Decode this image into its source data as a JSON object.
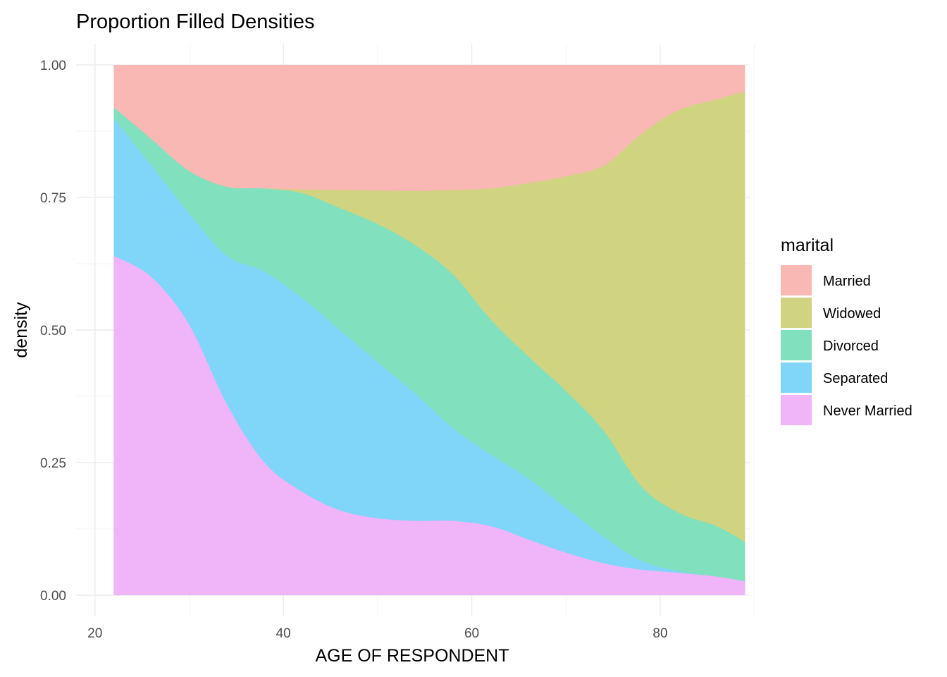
{
  "chart_data": {
    "type": "area",
    "title": "Proportion Filled Densities",
    "xlabel": "AGE OF RESPONDENT",
    "ylabel": "density",
    "xlim": [
      18,
      89.5
    ],
    "ylim": [
      -0.04,
      1.04
    ],
    "x_ticks": [
      {
        "value": 20,
        "label": "20"
      },
      {
        "value": 40,
        "label": "40"
      },
      {
        "value": 60,
        "label": "60"
      },
      {
        "value": 80,
        "label": "80"
      }
    ],
    "y_ticks": [
      {
        "value": 0,
        "label": "0.00"
      },
      {
        "value": 0.25,
        "label": "0.25"
      },
      {
        "value": 0.5,
        "label": "0.50"
      },
      {
        "value": 0.75,
        "label": "0.75"
      },
      {
        "value": 1.0,
        "label": "1.00"
      }
    ],
    "x_minor": [
      30,
      50,
      70,
      90
    ],
    "y_minor": [
      0.125,
      0.375,
      0.625,
      0.875
    ],
    "grid": true,
    "stacked": "fill",
    "legend": {
      "title": "marital",
      "position": "right"
    },
    "x": [
      22,
      26,
      30,
      34,
      38,
      42,
      46,
      50,
      54,
      58,
      62,
      66,
      70,
      74,
      78,
      82,
      86,
      89
    ],
    "series": [
      {
        "name": "Never Married",
        "color": "#F0B4F8",
        "values": [
          0.64,
          0.6,
          0.51,
          0.36,
          0.25,
          0.195,
          0.16,
          0.145,
          0.14,
          0.14,
          0.13,
          0.105,
          0.08,
          0.06,
          0.048,
          0.042,
          0.035,
          0.026
        ]
      },
      {
        "name": "Separated",
        "color": "#80D6F9",
        "values": [
          0.9,
          0.81,
          0.72,
          0.64,
          0.61,
          0.56,
          0.5,
          0.44,
          0.38,
          0.315,
          0.265,
          0.22,
          0.165,
          0.11,
          0.065,
          0.045,
          0.035,
          0.026
        ]
      },
      {
        "name": "Divorced",
        "color": "#81E0BE",
        "values": [
          0.92,
          0.86,
          0.8,
          0.77,
          0.767,
          0.758,
          0.73,
          0.7,
          0.66,
          0.605,
          0.52,
          0.45,
          0.385,
          0.31,
          0.205,
          0.155,
          0.13,
          0.1
        ]
      },
      {
        "name": "Widowed",
        "color": "#D0D380",
        "values": [
          0.92,
          0.86,
          0.8,
          0.77,
          0.767,
          0.765,
          0.764,
          0.763,
          0.762,
          0.764,
          0.767,
          0.777,
          0.79,
          0.81,
          0.87,
          0.915,
          0.935,
          0.95
        ]
      },
      {
        "name": "Married",
        "color": "#F9B8B4",
        "values": [
          1.0,
          1.0,
          1.0,
          1.0,
          1.0,
          1.0,
          1.0,
          1.0,
          1.0,
          1.0,
          1.0,
          1.0,
          1.0,
          1.0,
          1.0,
          1.0,
          1.0,
          1.0
        ]
      }
    ],
    "legend_order": [
      "Married",
      "Widowed",
      "Divorced",
      "Separated",
      "Never Married"
    ]
  }
}
